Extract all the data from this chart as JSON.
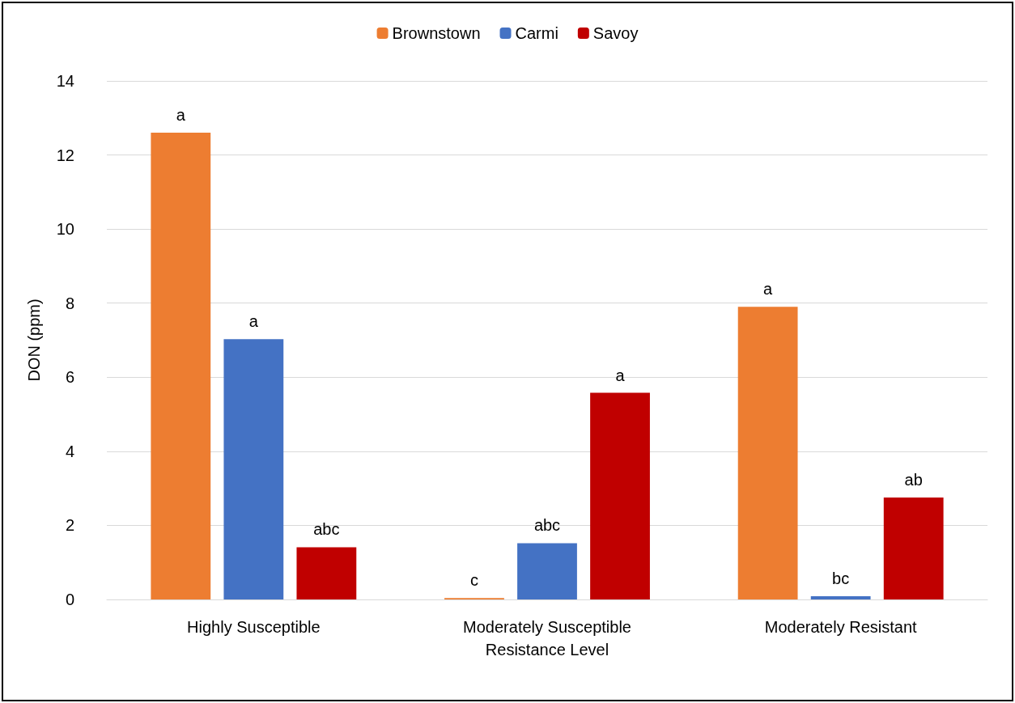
{
  "chart_data": {
    "type": "bar",
    "xlabel": "Resistance Level",
    "ylabel": "DON (ppm)",
    "categories": [
      "Highly Susceptible",
      "Moderately Susceptible",
      "Moderately Resistant"
    ],
    "series": [
      {
        "name": "Brownstown",
        "color": "#ed7d31",
        "values": [
          12.6,
          0.04,
          7.9
        ],
        "value_labels": [
          "a",
          "c",
          "a"
        ]
      },
      {
        "name": "Carmi",
        "color": "#4472c4",
        "values": [
          7.03,
          1.52,
          0.09
        ],
        "value_labels": [
          "a",
          "abc",
          "bc"
        ]
      },
      {
        "name": "Savoy",
        "color": "#c00000",
        "values": [
          1.41,
          5.58,
          2.75
        ],
        "value_labels": [
          "abc",
          "a",
          "ab"
        ]
      }
    ],
    "ylim": [
      0,
      14
    ],
    "yticks": [
      0,
      2,
      4,
      6,
      8,
      10,
      12,
      14
    ],
    "grid": "y",
    "legend": "top"
  }
}
